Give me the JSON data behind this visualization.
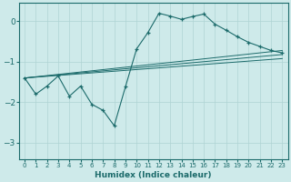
{
  "xlabel": "Humidex (Indice chaleur)",
  "bg_color": "#ceeaea",
  "line_color": "#1c6b6b",
  "grid_color": "#afd4d4",
  "xlim": [
    -0.5,
    23.5
  ],
  "ylim": [
    -3.4,
    0.45
  ],
  "yticks": [
    0,
    -1,
    -2,
    -3
  ],
  "xticks": [
    0,
    1,
    2,
    3,
    4,
    5,
    6,
    7,
    8,
    9,
    10,
    11,
    12,
    13,
    14,
    15,
    16,
    17,
    18,
    19,
    20,
    21,
    22,
    23
  ],
  "series1_x": [
    0,
    1,
    2,
    3,
    4,
    5,
    6,
    7,
    8,
    9,
    10,
    11,
    12,
    13,
    14,
    15,
    16,
    17,
    18,
    19,
    20,
    21,
    22,
    23
  ],
  "series1_y": [
    -1.4,
    -1.8,
    -1.6,
    -1.35,
    -1.85,
    -1.6,
    -2.05,
    -2.2,
    -2.58,
    -1.62,
    -0.68,
    -0.28,
    0.2,
    0.13,
    0.05,
    0.12,
    0.18,
    -0.07,
    -0.22,
    -0.38,
    -0.52,
    -0.62,
    -0.72,
    -0.78
  ],
  "line2_x": [
    0,
    23
  ],
  "line2_y": [
    -1.4,
    -0.72
  ],
  "line3_x": [
    0,
    23
  ],
  "line3_y": [
    -1.4,
    -0.82
  ],
  "line4_x": [
    0,
    23
  ],
  "line4_y": [
    -1.4,
    -0.92
  ]
}
